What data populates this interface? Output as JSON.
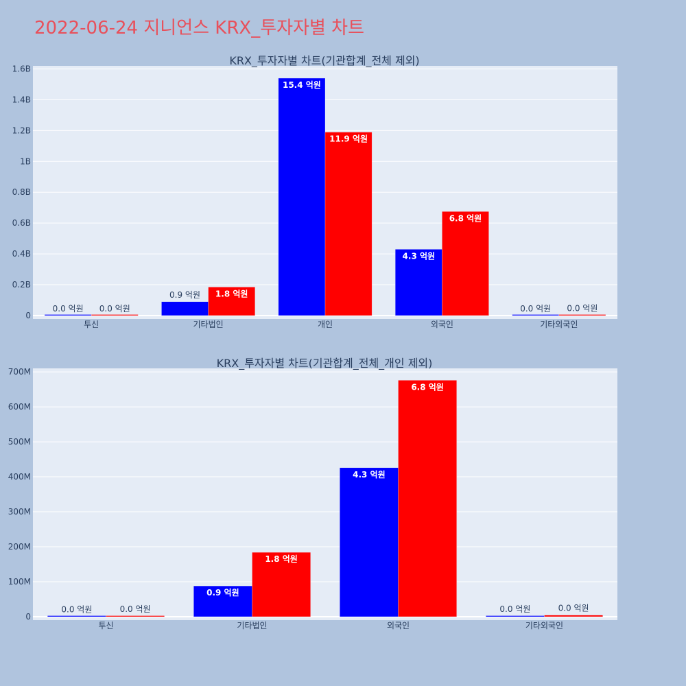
{
  "title": "2022-06-24 지니언스 KRX_투자자별 차트",
  "colors": {
    "background": "#b0c4de",
    "plot_bg": "#e5ecf6",
    "grid": "#ffffff",
    "title": "#e8505b",
    "text": "#2a3f5f"
  },
  "chart_data": [
    {
      "type": "bar",
      "title": "KRX_투자자별 차트(기관합계_전체 제외)",
      "categories": [
        "투신",
        "기타법인",
        "개인",
        "외국인",
        "기타외국인"
      ],
      "series": [
        {
          "color": "#0000ff",
          "values": [
            500000,
            90000000,
            1540000000,
            430000000,
            1000000
          ],
          "labels": [
            "0.0 억원",
            "0.9 억원",
            "15.4 억원",
            "4.3 억원",
            "0.0 억원"
          ]
        },
        {
          "color": "#ff0000",
          "values": [
            1000000,
            185000000,
            1190000000,
            675000000,
            2500000
          ],
          "labels": [
            "0.0 억원",
            "1.8 억원",
            "11.9 억원",
            "6.8 억원",
            "0.0 억원"
          ]
        }
      ],
      "ylim": [
        0,
        1620000000
      ],
      "yticks": [
        0,
        200000000,
        400000000,
        600000000,
        800000000,
        1000000000,
        1200000000,
        1400000000,
        1600000000
      ],
      "ytick_labels": [
        "0",
        "0.2B",
        "0.4B",
        "0.6B",
        "0.8B",
        "1B",
        "1.2B",
        "1.4B",
        "1.6B"
      ],
      "grid": true
    },
    {
      "type": "bar",
      "title": "KRX_투자자별 차트(기관합계_전체_개인 제외)",
      "categories": [
        "투신",
        "기타법인",
        "외국인",
        "기타외국인"
      ],
      "series": [
        {
          "color": "#0000ff",
          "values": [
            1000000,
            88000000,
            426000000,
            1500000
          ],
          "labels": [
            "0.0 억원",
            "0.9 억원",
            "4.3 억원",
            "0.0 억원"
          ]
        },
        {
          "color": "#ff0000",
          "values": [
            1500000,
            184000000,
            676000000,
            4500000
          ],
          "labels": [
            "0.0 억원",
            "1.8 억원",
            "6.8 억원",
            "0.0 억원"
          ]
        }
      ],
      "ylim": [
        0,
        710000000
      ],
      "yticks": [
        0,
        100000000,
        200000000,
        300000000,
        400000000,
        500000000,
        600000000,
        700000000
      ],
      "ytick_labels": [
        "0",
        "100M",
        "200M",
        "300M",
        "400M",
        "500M",
        "600M",
        "700M"
      ],
      "grid": true
    }
  ]
}
